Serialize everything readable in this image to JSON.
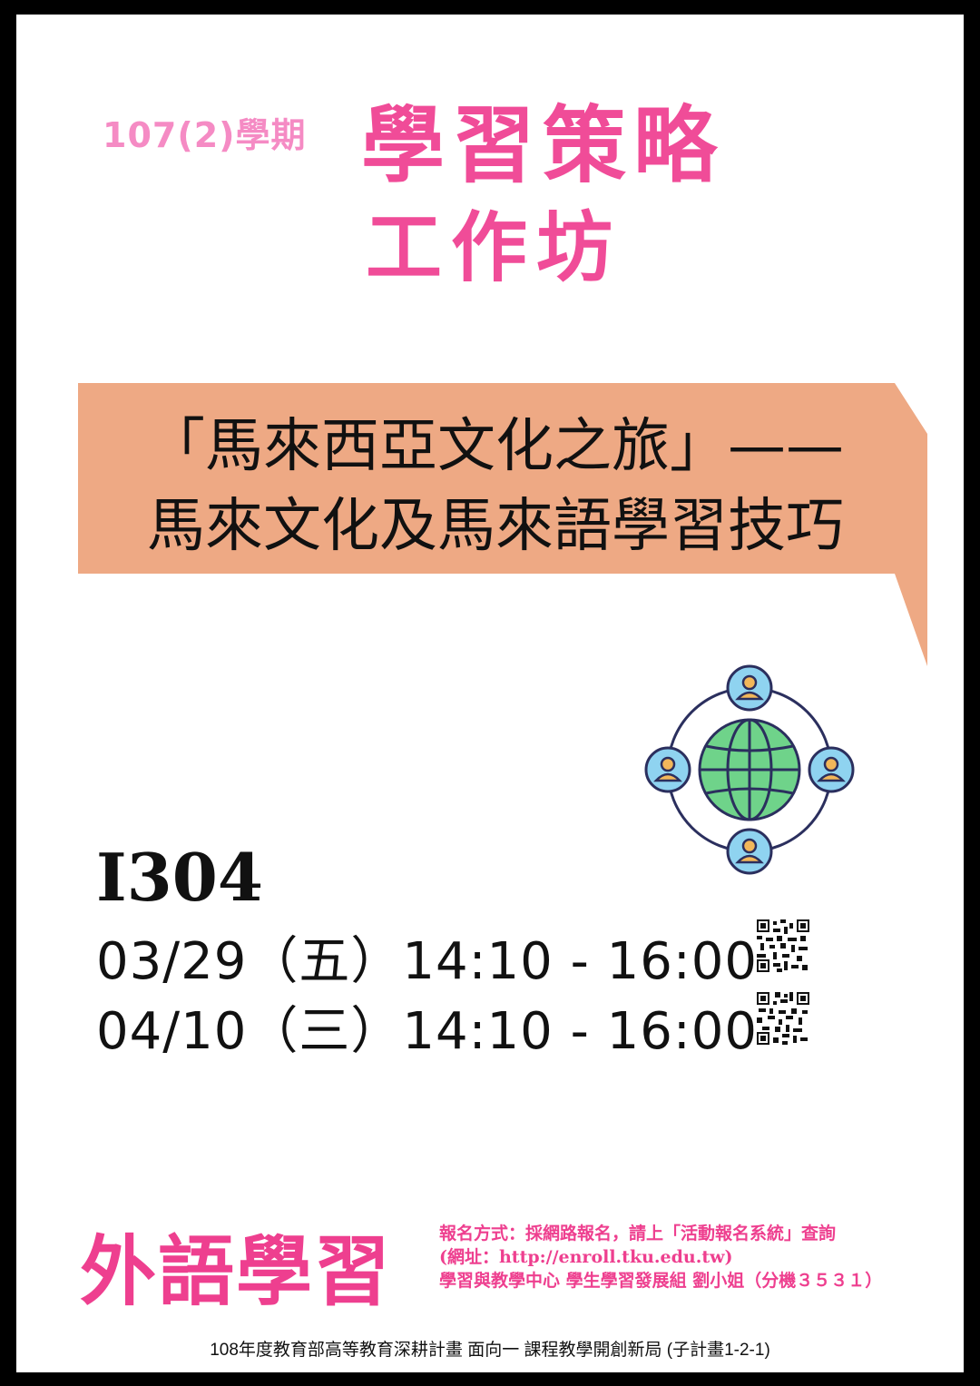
{
  "header": {
    "semester": "107(2)學期",
    "title_line1": "學習策略",
    "title_line2": "工作坊"
  },
  "banner": {
    "line1": "「馬來西亞文化之旅」——",
    "line2": "馬來文化及馬來語學習技巧",
    "color": "#eea984"
  },
  "event": {
    "room": "I304",
    "sessions": [
      {
        "text": "03/29（五）14:10 - 16:00"
      },
      {
        "text": "04/10（三）14:10 - 16:00"
      }
    ]
  },
  "brand": "外語學習",
  "registration": {
    "line1": "報名方式：採網路報名，請上「活動報名系統」查詢",
    "line2": "(網址：http://enroll.tku.edu.tw)",
    "line3": "學習與教學中心 學生學習發展組 劉小姐（分機３５３１）"
  },
  "footer": "108年度教育部高等教育深耕計畫 面向一 課程教學開創新局 (子計畫1-2-1)",
  "colors": {
    "pink": "#f04c98",
    "light_pink": "#f58bc4",
    "globe_green": "#6fd38a",
    "node_blue": "#8fd3f0"
  },
  "icons": [
    "globe-network-icon",
    "qr-code-icon"
  ]
}
